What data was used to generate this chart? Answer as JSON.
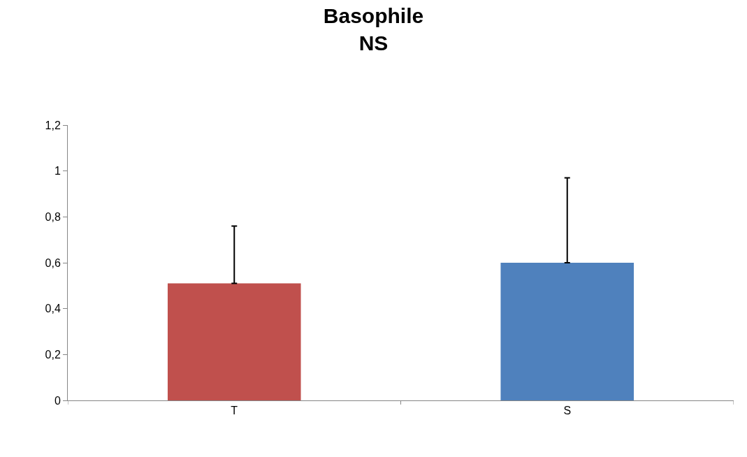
{
  "chart_data": {
    "type": "bar",
    "title": "Basophile\nNS",
    "categories": [
      "T",
      "S"
    ],
    "values": [
      0.51,
      0.6
    ],
    "colors": [
      "#c0504d",
      "#4f81bd"
    ],
    "errors": [
      [
        0.51,
        0.76
      ],
      [
        0.6,
        0.97
      ]
    ],
    "ylim": [
      0,
      1.2
    ],
    "yticks": [
      0,
      {
        "value": 0.2,
        "label": "0,2"
      },
      {
        "value": 0.4,
        "label": "0,4"
      },
      {
        "value": 0.6,
        "label": "0,6"
      },
      {
        "value": 0.8,
        "label": "0,8"
      },
      1,
      {
        "value": 1.2,
        "label": "1,2"
      }
    ],
    "legend": false
  }
}
